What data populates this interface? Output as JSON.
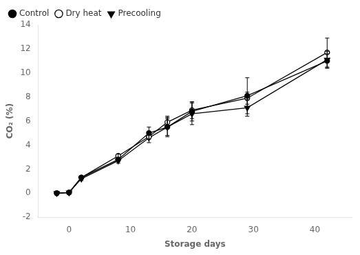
{
  "chart_data": {
    "type": "line",
    "xlabel": "Storage days",
    "ylabel": "CO₂ (%)",
    "x": [
      -2,
      0,
      2,
      8,
      13,
      16,
      20,
      29,
      42
    ],
    "series": [
      {
        "name": "Control",
        "color": "black",
        "marker": "circle",
        "values": [
          0.0,
          0.05,
          1.3,
          2.8,
          5.0,
          5.5,
          6.8,
          8.1,
          11.0
        ],
        "errors": [
          0.05,
          0.05,
          0.1,
          0.15,
          0.5,
          0.7,
          0.8,
          1.5,
          0.6
        ]
      },
      {
        "name": "Dry heat",
        "color": "black",
        "marker": "circle-open",
        "values": [
          0.0,
          0.05,
          1.3,
          3.1,
          4.7,
          5.9,
          6.9,
          7.9,
          11.7
        ],
        "errors": [
          0.05,
          0.05,
          0.15,
          0.15,
          0.2,
          0.5,
          0.7,
          0.5,
          1.2
        ]
      },
      {
        "name": "Precooling",
        "color": "black",
        "marker": "triangle-down",
        "values": [
          0.0,
          0.05,
          1.2,
          2.7,
          4.6,
          5.5,
          6.6,
          7.1,
          11.1
        ],
        "errors": [
          0.05,
          0.05,
          0.15,
          0.2,
          0.4,
          0.8,
          0.9,
          0.7,
          0.7
        ]
      }
    ],
    "xlim": [
      -5,
      46
    ],
    "xticks": [
      0,
      10,
      20,
      30,
      40
    ],
    "ylim": [
      -2,
      14
    ],
    "yticks": [
      -2,
      0,
      2,
      4,
      6,
      8,
      10,
      12,
      14
    ],
    "grid": false,
    "legend": "upper left"
  }
}
